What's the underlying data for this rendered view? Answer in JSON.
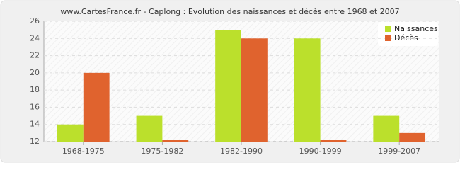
{
  "chart_data": {
    "type": "bar",
    "title": "www.CartesFrance.fr - Caplong : Evolution des naissances et décès entre 1968 et 2007",
    "categories": [
      "1968-1975",
      "1975-1982",
      "1982-1990",
      "1990-1999",
      "1999-2007"
    ],
    "series": [
      {
        "name": "Naissances",
        "color": "#bbe02c",
        "values": [
          14,
          15,
          25,
          24,
          15
        ]
      },
      {
        "name": "Décès",
        "color": "#e0632e",
        "values": [
          20,
          12,
          24,
          12,
          13
        ]
      }
    ],
    "ylim": [
      12,
      26
    ],
    "yticks": [
      12,
      14,
      16,
      18,
      20,
      22,
      24,
      26
    ],
    "grid": true,
    "legend": "top-right"
  }
}
